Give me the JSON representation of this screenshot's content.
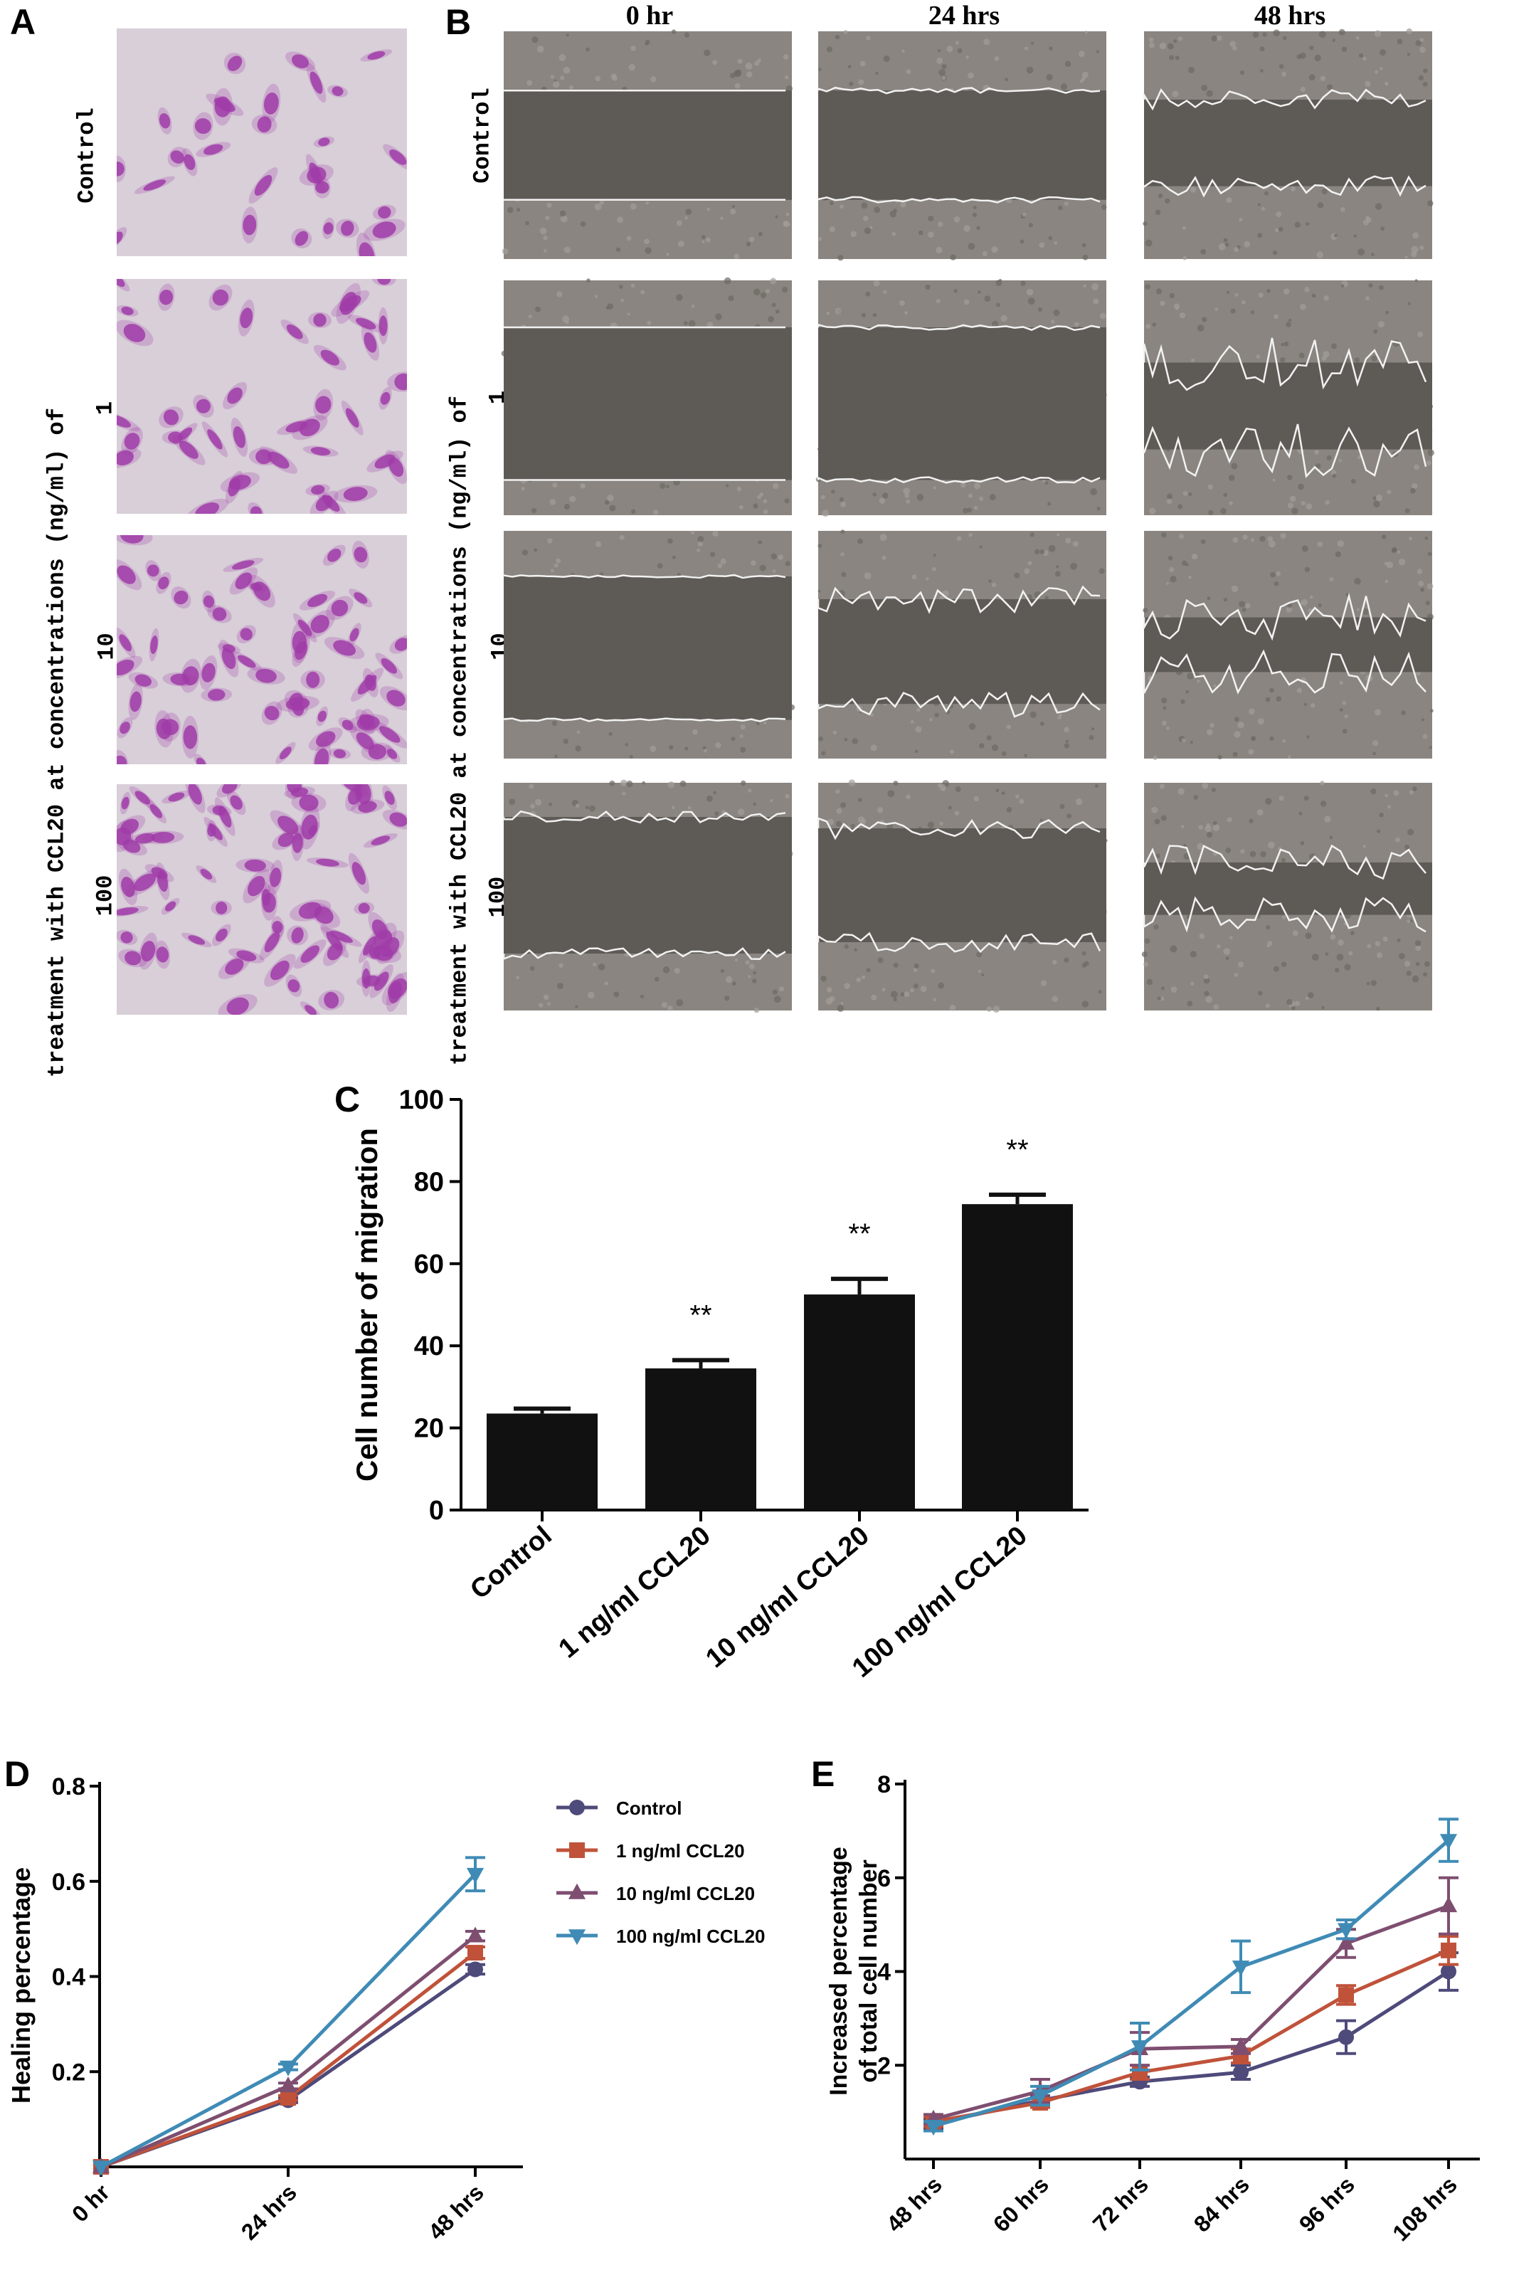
{
  "panel_letters": {
    "a": "A",
    "b": "B",
    "c": "C",
    "d": "D",
    "e": "E"
  },
  "panel_a": {
    "row_labels": [
      "Control",
      "1",
      "10",
      "100"
    ],
    "side_label": "treatment with CCL20 at concentrations (ng/ml) of",
    "cell_density": [
      30,
      45,
      65,
      80
    ],
    "stain_color": "#a03ca8"
  },
  "panel_b": {
    "columns": [
      "0 hr",
      "24 hrs",
      "48 hrs"
    ],
    "row_labels": [
      "Control",
      "1",
      "10",
      "100"
    ],
    "side_label": "treatment with CCL20 at concentrations (ng/ml) of"
  },
  "chart_data": [
    {
      "id": "C",
      "type": "bar",
      "categories": [
        "Control",
        "1 ng/ml CCL20",
        "10 ng/ml CCL20",
        "100 ng/ml CCL20"
      ],
      "values": [
        23.5,
        34.5,
        52.5,
        74.5
      ],
      "errors": [
        1.2,
        2.0,
        3.8,
        2.3
      ],
      "significance": [
        "",
        "**",
        "**",
        "**"
      ],
      "ylabel": "Cell number of migration",
      "ylim": [
        0,
        100
      ],
      "yticks": [
        0,
        20,
        40,
        60,
        80,
        100
      ],
      "bar_color": "#111111"
    },
    {
      "id": "D",
      "type": "line",
      "x": [
        "0 hr",
        "24 hrs",
        "48 hrs"
      ],
      "ylabel": "Healing percentage",
      "ylim": [
        0,
        0.8
      ],
      "yticks": [
        "0.2",
        "0.4",
        "0.6",
        "0.8"
      ],
      "legend_position": "right",
      "series": [
        {
          "name": "Control",
          "values": [
            0.0,
            0.14,
            0.415
          ],
          "errors": [
            0.0,
            0.005,
            0.01
          ],
          "color": "#4e4a7a",
          "marker": "circle"
        },
        {
          "name": "1 ng/ml CCL20",
          "values": [
            0.0,
            0.145,
            0.45
          ],
          "errors": [
            0.0,
            0.005,
            0.012
          ],
          "color": "#c0523a",
          "marker": "square"
        },
        {
          "name": "10 ng/ml CCL20",
          "values": [
            0.0,
            0.17,
            0.485
          ],
          "errors": [
            0.0,
            0.006,
            0.01
          ],
          "color": "#7e4e70",
          "marker": "triangle-up"
        },
        {
          "name": "100 ng/ml CCL20",
          "values": [
            0.0,
            0.21,
            0.615
          ],
          "errors": [
            0.0,
            0.006,
            0.035
          ],
          "color": "#3f8bb5",
          "marker": "triangle-down"
        }
      ]
    },
    {
      "id": "E",
      "type": "line",
      "x": [
        "48 hrs",
        "60 hrs",
        "72 hrs",
        "84 hrs",
        "96 hrs",
        "108 hrs"
      ],
      "ylabel_lines": [
        "Increased  percentage",
        "of total cell number"
      ],
      "ylim": [
        0,
        8
      ],
      "yticks": [
        "2",
        "4",
        "6",
        "8"
      ],
      "series": [
        {
          "name": "Control",
          "values": [
            0.75,
            1.25,
            1.65,
            1.85,
            2.6,
            4.0
          ],
          "errors": [
            0.1,
            0.1,
            0.1,
            0.15,
            0.35,
            0.4
          ],
          "color": "#4e4a7a",
          "marker": "circle"
        },
        {
          "name": "1 ng/ml CCL20",
          "values": [
            0.8,
            1.2,
            1.85,
            2.2,
            3.5,
            4.45
          ],
          "errors": [
            0.1,
            0.1,
            0.15,
            0.15,
            0.2,
            0.3
          ],
          "color": "#c0523a",
          "marker": "square"
        },
        {
          "name": "10 ng/ml CCL20",
          "values": [
            0.85,
            1.45,
            2.35,
            2.4,
            4.6,
            5.4
          ],
          "errors": [
            0.1,
            0.25,
            0.35,
            0.15,
            0.3,
            0.6
          ],
          "color": "#7e4e70",
          "marker": "triangle-up"
        },
        {
          "name": "100 ng/ml CCL20",
          "values": [
            0.7,
            1.35,
            2.4,
            4.1,
            4.9,
            6.8
          ],
          "errors": [
            0.1,
            0.2,
            0.5,
            0.55,
            0.2,
            0.45
          ],
          "color": "#3f8bb5",
          "marker": "triangle-down"
        }
      ]
    }
  ]
}
